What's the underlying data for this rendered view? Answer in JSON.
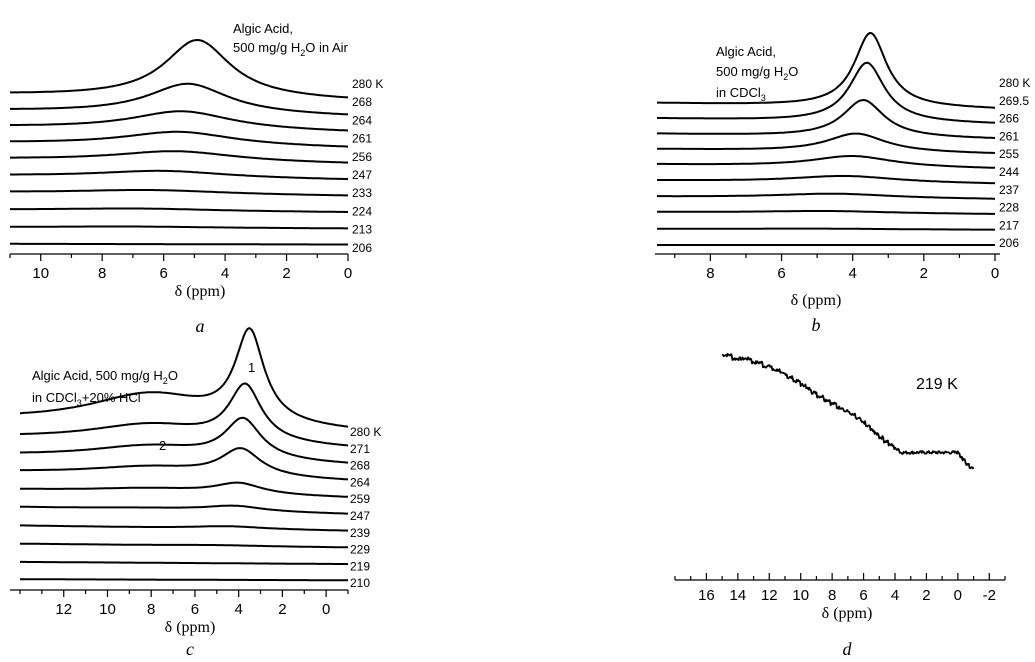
{
  "chart_data": [
    {
      "id": "a",
      "type": "line",
      "caption": "a",
      "annotation": [
        "Algic Acid,",
        "500 mg/g H",
        "2",
        "O in Air"
      ],
      "xlabel": "δ (ppm)",
      "xlim": [
        11,
        0
      ],
      "x_ticks": [
        10,
        8,
        6,
        4,
        2,
        0
      ],
      "series": [
        {
          "name": "280 K",
          "peak": 4.9,
          "height": 1.0,
          "width": 1.3,
          "baseline": 0.18
        },
        {
          "name": "268",
          "peak": 5.2,
          "height": 0.52,
          "width": 1.6,
          "baseline": 0.17
        },
        {
          "name": "264",
          "peak": 5.4,
          "height": 0.32,
          "width": 2.0,
          "baseline": 0.16
        },
        {
          "name": "261",
          "peak": 5.5,
          "height": 0.24,
          "width": 2.2,
          "baseline": 0.15
        },
        {
          "name": "256",
          "peak": 5.6,
          "height": 0.18,
          "width": 2.4,
          "baseline": 0.14
        },
        {
          "name": "247",
          "peak": 6.0,
          "height": 0.12,
          "width": 2.6,
          "baseline": 0.12
        },
        {
          "name": "233",
          "peak": 6.4,
          "height": 0.07,
          "width": 3.0,
          "baseline": 0.1
        },
        {
          "name": "224",
          "peak": 6.8,
          "height": 0.04,
          "width": 3.0,
          "baseline": 0.07
        },
        {
          "name": "213",
          "peak": 7.0,
          "height": 0.02,
          "width": 3.0,
          "baseline": 0.04
        },
        {
          "name": "206",
          "peak": 7.0,
          "height": 0.0,
          "width": 3.0,
          "baseline": 0.02
        }
      ]
    },
    {
      "id": "b",
      "type": "line",
      "caption": "b",
      "annotation": [
        "Algic Acid,",
        "500 mg/g H",
        "2",
        "O",
        "in CDCl",
        "3"
      ],
      "xlabel": "δ (ppm)",
      "xlim": [
        9.5,
        0
      ],
      "x_ticks": [
        8,
        6,
        4,
        2,
        0
      ],
      "series": [
        {
          "name": "280 K",
          "peak": 3.5,
          "height": 1.0,
          "width": 0.55,
          "baseline": 0.14
        },
        {
          "name": "269.5",
          "peak": 3.6,
          "height": 0.8,
          "width": 0.6,
          "baseline": 0.13
        },
        {
          "name": "266",
          "peak": 3.7,
          "height": 0.5,
          "width": 0.7,
          "baseline": 0.12
        },
        {
          "name": "261",
          "peak": 3.9,
          "height": 0.25,
          "width": 1.0,
          "baseline": 0.11
        },
        {
          "name": "255",
          "peak": 4.0,
          "height": 0.15,
          "width": 1.4,
          "baseline": 0.1
        },
        {
          "name": "244",
          "peak": 4.2,
          "height": 0.09,
          "width": 1.8,
          "baseline": 0.08
        },
        {
          "name": "237",
          "peak": 4.5,
          "height": 0.06,
          "width": 2.0,
          "baseline": 0.06
        },
        {
          "name": "228",
          "peak": 4.7,
          "height": 0.03,
          "width": 2.2,
          "baseline": 0.05
        },
        {
          "name": "217",
          "peak": 5.0,
          "height": 0.01,
          "width": 2.5,
          "baseline": 0.02
        },
        {
          "name": "206",
          "peak": 5.0,
          "height": 0.0,
          "width": 2.5,
          "baseline": 0.0
        }
      ]
    },
    {
      "id": "c",
      "type": "line",
      "caption": "c",
      "annotation": [
        "Algic Acid,  500 mg/g H",
        "2",
        "O",
        "in CDCl",
        "3",
        "+20% HCl"
      ],
      "peak_labels": [
        "1",
        "2"
      ],
      "xlabel": "δ (ppm)",
      "xlim": [
        14,
        -1
      ],
      "x_ticks": [
        12,
        10,
        8,
        6,
        4,
        2,
        0
      ],
      "series": [
        {
          "name": "280 K",
          "peak": 3.5,
          "height": 1.0,
          "width": 0.8,
          "baseline": 0.22,
          "shoulder": 0.35
        },
        {
          "name": "271",
          "peak": 3.7,
          "height": 0.62,
          "width": 0.9,
          "baseline": 0.2,
          "shoulder": 0.2
        },
        {
          "name": "268",
          "peak": 3.8,
          "height": 0.44,
          "width": 1.0,
          "baseline": 0.18,
          "shoulder": 0.15
        },
        {
          "name": "264",
          "peak": 3.9,
          "height": 0.3,
          "width": 1.1,
          "baseline": 0.17,
          "shoulder": 0.1
        },
        {
          "name": "259",
          "peak": 4.0,
          "height": 0.12,
          "width": 1.3,
          "baseline": 0.15,
          "shoulder": 0.05
        },
        {
          "name": "247",
          "peak": 4.2,
          "height": 0.06,
          "width": 1.6,
          "baseline": 0.13,
          "shoulder": 0.02
        },
        {
          "name": "239",
          "peak": 4.5,
          "height": 0.03,
          "width": 2.0,
          "baseline": 0.1,
          "shoulder": 0.0
        },
        {
          "name": "229",
          "peak": 5.0,
          "height": 0.01,
          "width": 2.5,
          "baseline": 0.07,
          "shoulder": 0.0
        },
        {
          "name": "219",
          "peak": 5.0,
          "height": 0.0,
          "width": 2.5,
          "baseline": 0.04,
          "shoulder": 0.0
        },
        {
          "name": "210",
          "peak": 5.0,
          "height": 0.0,
          "width": 2.5,
          "baseline": 0.02,
          "shoulder": 0.0
        }
      ]
    },
    {
      "id": "d",
      "type": "line",
      "caption": "d",
      "annotation": [
        "219 K"
      ],
      "xlabel": "δ (ppm)",
      "xlim": [
        18,
        -3
      ],
      "x_ticks": [
        16,
        14,
        12,
        10,
        8,
        6,
        4,
        2,
        0,
        -2
      ],
      "series": [
        {
          "name": "",
          "x": [
            15.0,
            14.0,
            13.0,
            12.0,
            11.0,
            10.0,
            9.0,
            8.0,
            7.0,
            6.0,
            5.0,
            4.0,
            3.5,
            3.0,
            2.0,
            1.0,
            0.0,
            -0.5,
            -1.0
          ],
          "y": [
            1.0,
            0.98,
            0.96,
            0.92,
            0.87,
            0.81,
            0.74,
            0.68,
            0.62,
            0.55,
            0.46,
            0.38,
            0.35,
            0.36,
            0.36,
            0.36,
            0.36,
            0.28,
            0.24
          ]
        }
      ]
    }
  ]
}
